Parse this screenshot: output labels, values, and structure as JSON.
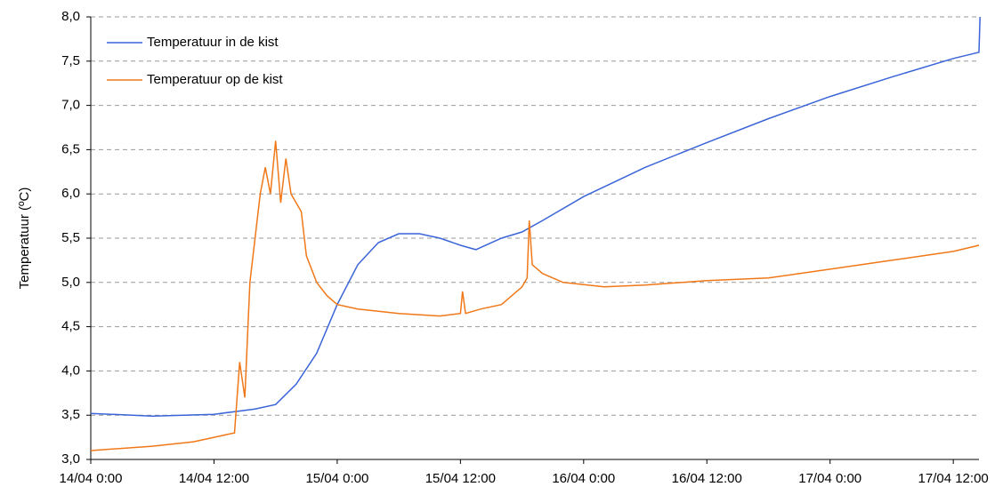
{
  "chart_data": {
    "type": "line",
    "y_label": "Temperatuur (ºC)",
    "xlim": [
      "14/04 0:00",
      "17/04 14:30"
    ],
    "xticks": [
      "14/04 0:00",
      "14/04 12:00",
      "15/04 0:00",
      "15/04 12:00",
      "16/04 0:00",
      "16/04 12:00",
      "17/04 0:00",
      "17/04 12:00"
    ],
    "ylim": [
      3,
      8
    ],
    "yticks": [
      {
        "value": 3,
        "label": "3,0"
      },
      {
        "value": 3.5,
        "label": "3,5"
      },
      {
        "value": 4,
        "label": "4,0"
      },
      {
        "value": 4.5,
        "label": "4,5"
      },
      {
        "value": 5,
        "label": "5,0"
      },
      {
        "value": 5.5,
        "label": "5,5"
      },
      {
        "value": 6,
        "label": "6,0"
      },
      {
        "value": 6.5,
        "label": "6,5"
      },
      {
        "value": 7,
        "label": "7,0"
      },
      {
        "value": 7.5,
        "label": "7,5"
      },
      {
        "value": 8,
        "label": "8,0"
      }
    ],
    "grid": true,
    "legend": "upper left",
    "series": [
      {
        "name": "Temperatuur in de kist",
        "color": "#3a64d8",
        "x": [
          "14/04 0:00",
          "14/04 6:00",
          "14/04 12:00",
          "14/04 14:00",
          "14/04 16:00",
          "14/04 18:00",
          "14/04 20:00",
          "14/04 22:00",
          "15/04 0:00",
          "15/04 2:00",
          "15/04 4:00",
          "15/04 6:00",
          "15/04 8:00",
          "15/04 10:00",
          "15/04 12:00",
          "15/04 13:30",
          "15/04 16:00",
          "15/04 18:00",
          "15/04 20:00",
          "16/04 0:00",
          "16/04 6:00",
          "16/04 12:00",
          "16/04 18:00",
          "17/04 0:00",
          "17/04 6:00",
          "17/04 12:00",
          "17/04 14:30",
          "17/04 14:36"
        ],
        "values": [
          3.52,
          3.49,
          3.51,
          3.54,
          3.57,
          3.62,
          3.85,
          4.2,
          4.75,
          5.2,
          5.45,
          5.55,
          5.55,
          5.5,
          5.42,
          5.37,
          5.5,
          5.57,
          5.7,
          5.97,
          6.3,
          6.58,
          6.85,
          7.1,
          7.32,
          7.53,
          7.6,
          8.0
        ]
      },
      {
        "name": "Temperatuur op de kist",
        "color": "#f07818",
        "x": [
          "14/04 0:00",
          "14/04 6:00",
          "14/04 10:00",
          "14/04 12:00",
          "14/04 14:00",
          "14/04 14:30",
          "14/04 15:00",
          "14/04 15:30",
          "14/04 16:00",
          "14/04 16:30",
          "14/04 17:00",
          "14/04 17:30",
          "14/04 18:00",
          "14/04 18:30",
          "14/04 19:00",
          "14/04 19:30",
          "14/04 20:00",
          "14/04 20:30",
          "14/04 21:00",
          "14/04 22:00",
          "14/04 23:00",
          "15/04 0:00",
          "15/04 2:00",
          "15/04 6:00",
          "15/04 10:00",
          "15/04 12:00",
          "15/04 12:12",
          "15/04 12:30",
          "15/04 14:00",
          "15/04 16:00",
          "15/04 18:00",
          "15/04 18:30",
          "15/04 18:42",
          "15/04 19:00",
          "15/04 20:00",
          "15/04 22:00",
          "16/04 2:00",
          "16/04 6:00",
          "16/04 12:00",
          "16/04 18:00",
          "17/04 0:00",
          "17/04 6:00",
          "17/04 12:00",
          "17/04 14:30"
        ],
        "values": [
          3.1,
          3.15,
          3.2,
          3.25,
          3.3,
          4.1,
          3.7,
          5.0,
          5.5,
          6.0,
          6.3,
          6.0,
          6.6,
          5.9,
          6.4,
          6.0,
          5.9,
          5.8,
          5.3,
          5.0,
          4.85,
          4.75,
          4.7,
          4.65,
          4.62,
          4.65,
          4.9,
          4.65,
          4.7,
          4.75,
          4.95,
          5.05,
          5.7,
          5.2,
          5.1,
          5.0,
          4.95,
          4.97,
          5.02,
          5.05,
          5.15,
          5.25,
          5.35,
          5.42
        ]
      }
    ]
  }
}
